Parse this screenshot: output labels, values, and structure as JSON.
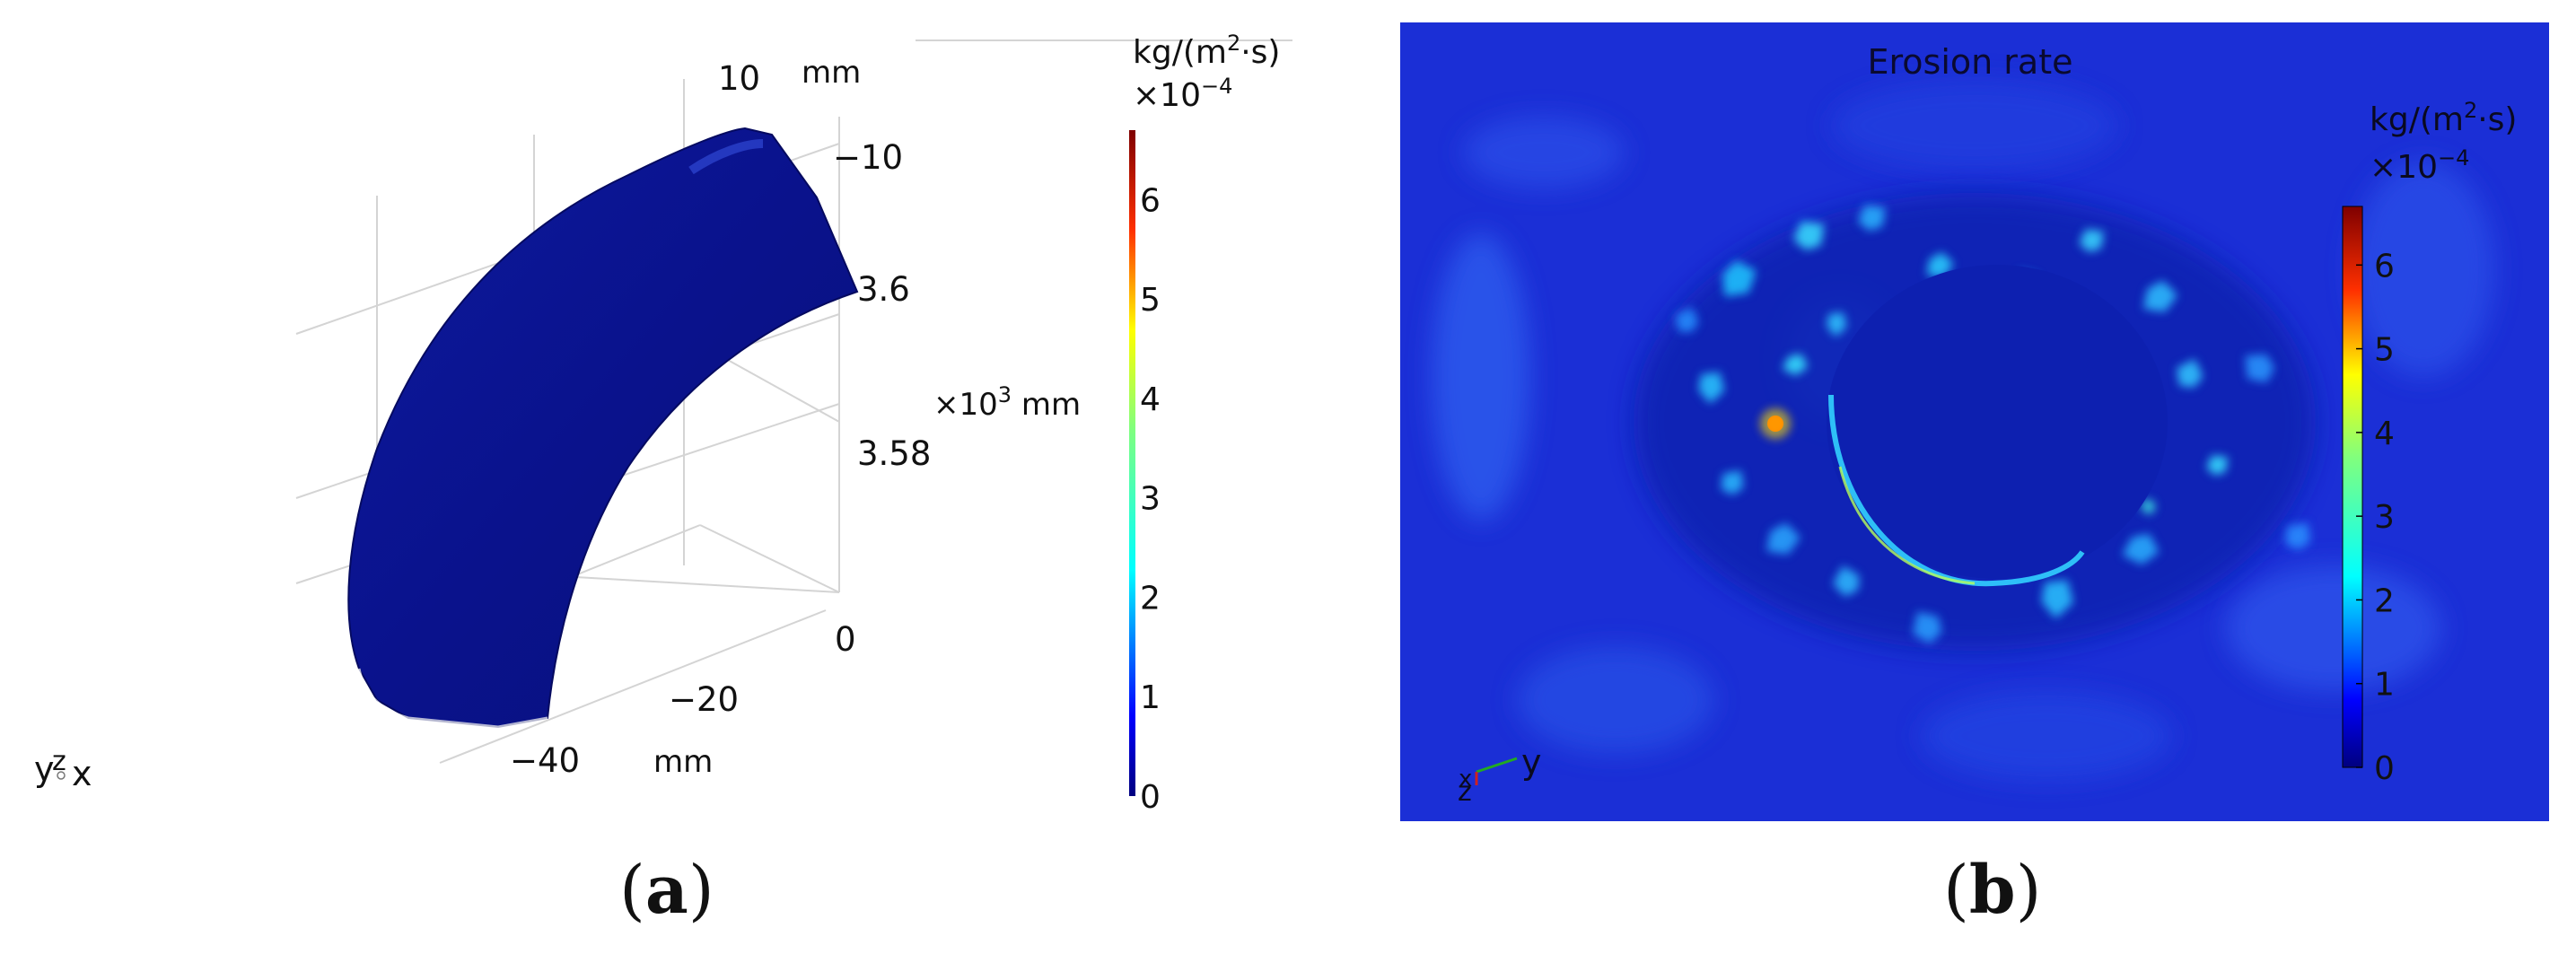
{
  "panel_a": {
    "axis_labels": {
      "z_top": "10",
      "z_unit": "mm",
      "x_neg10": "−10",
      "y_36": "3.6",
      "y_multiplier": "×10",
      "y_multiplier_exp": "3",
      "y_multiplier_unit": " mm",
      "y_358": "3.58",
      "x_0": "0",
      "x_neg20": "−20",
      "x_neg40": "−40",
      "x_unit": "mm"
    },
    "colorbar": {
      "unit_base": "kg/(m",
      "unit_exp": "2",
      "unit_tail": "·s)",
      "scale_base": "×10",
      "scale_exp": "−4",
      "ticks": [
        "0",
        "1",
        "2",
        "3",
        "4",
        "5",
        "6"
      ],
      "range": [
        0,
        6.7
      ]
    },
    "triad": {
      "y": "y",
      "z": "z",
      "x": "x"
    }
  },
  "panel_b": {
    "title": "Erosion rate",
    "colorbar": {
      "unit_base": "kg/(m",
      "unit_exp": "2",
      "unit_tail": "·s)",
      "scale_base": "×10",
      "scale_exp": "−4",
      "ticks": [
        "0",
        "1",
        "2",
        "3",
        "4",
        "5",
        "6"
      ],
      "range": [
        0,
        6.7
      ]
    },
    "triad": {
      "y": "y",
      "z": "z",
      "x": "x"
    }
  },
  "captions": {
    "a": "a",
    "b": "b"
  },
  "colors": {
    "field_background": "#1b2fd6",
    "pipe_surface": "#0a0f8c",
    "jet_stops": [
      "#00007f",
      "#0000ff",
      "#007fff",
      "#00ffff",
      "#7fff7f",
      "#ffff00",
      "#ff7f00",
      "#ff0000",
      "#7f0000"
    ]
  }
}
